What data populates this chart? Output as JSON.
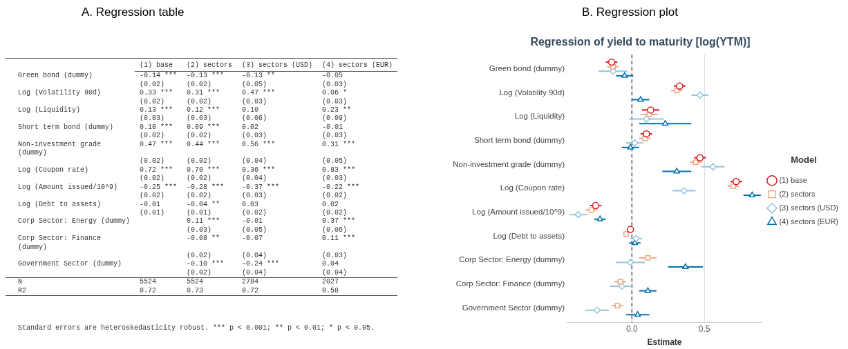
{
  "chart_data": [
    {
      "type": "other",
      "title": "A. Regression table",
      "categories": [
        "(1) base",
        "(2) sectors",
        "(3) sectors (USD)",
        "(4) sectors (EUR)"
      ],
      "y_categories": [
        "Green bond (dummy)",
        null,
        "Log (Volatility 90d)",
        null,
        "Log (Liquidity)",
        null,
        "Short term bond (dummy)",
        null,
        "Non-investment grade (dummy)",
        null,
        "Log (Coupon rate)",
        null,
        "Log (Amount issued/10^9)",
        null,
        "Log (Debt to assets)",
        null,
        "Corp Sector: Energy (dummy)",
        null,
        "Corp Sector: Finance (dummy)",
        null,
        "Government Sector (dummy)",
        null,
        "N",
        "R2"
      ],
      "cell_labels": [
        [
          "-0.14 ***",
          "-0.13 ***",
          "-0.13 **",
          "-0.05"
        ],
        [
          "(0.02)",
          "(0.02)",
          "(0.05)",
          "(0.03)"
        ],
        [
          "0.33 ***",
          "0.31 ***",
          "0.47 ***",
          "0.06 *"
        ],
        [
          "(0.02)",
          "(0.02)",
          "(0.03)",
          "(0.03)"
        ],
        [
          "0.13 ***",
          "0.12 ***",
          "0.10",
          "0.23 **"
        ],
        [
          "(0.03)",
          "(0.03)",
          "(0.06)",
          "(0.09)"
        ],
        [
          "0.10 ***",
          "0.09 ***",
          "0.02",
          "-0.01"
        ],
        [
          "(0.02)",
          "(0.02)",
          "(0.03)",
          "(0.03)"
        ],
        [
          "0.47 ***",
          "0.44 ***",
          "0.56 ***",
          "0.31 ***"
        ],
        [
          "(0.02)",
          "(0.02)",
          "(0.04)",
          "(0.05)"
        ],
        [
          "0.72 ***",
          "0.70 ***",
          "0.36 ***",
          "0.83 ***"
        ],
        [
          "(0.02)",
          "(0.02)",
          "(0.04)",
          "(0.03)"
        ],
        [
          "-0.25 ***",
          "-0.28 ***",
          "-0.37 ***",
          "-0.22 ***"
        ],
        [
          "(0.02)",
          "(0.02)",
          "(0.03)",
          "(0.02)"
        ],
        [
          "-0.01",
          "-0.04 **",
          "0.03",
          "0.02"
        ],
        [
          "(0.01)",
          "(0.01)",
          "(0.02)",
          "(0.02)"
        ],
        [
          null,
          "0.11 ***",
          "-0.01",
          "0.37 ***"
        ],
        [
          null,
          "(0.03)",
          "(0.05)",
          "(0.06)"
        ],
        [
          null,
          "-0.08 **",
          "-0.07",
          "0.11 ***"
        ],
        [
          null,
          "(0.02)",
          "(0.04)",
          "(0.03)"
        ],
        [
          null,
          "-0.10 ***",
          "-0.24 ***",
          "0.04"
        ],
        [
          null,
          "(0.02)",
          "(0.04)",
          "(0.04)"
        ],
        [
          "5524",
          "5524",
          "2784",
          "2027"
        ],
        [
          "0.72",
          "0.73",
          "0.72",
          "0.58"
        ]
      ],
      "annotations": [
        "Standard errors are heteroskedasticity robust.   *** p < 0.001; ** p < 0.01; * p < 0.05."
      ]
    },
    {
      "type": "scatter",
      "title": "Regression of yield to maturity [log(YTM)]",
      "annotations": [
        "B. Regression plot"
      ],
      "xlabel": "Estimate",
      "legend_title": "Model",
      "legend": "right",
      "grid": "x",
      "orientation": "horizontal",
      "categories": [
        "Green bond (dummy)",
        "Log (Volatility 90d)",
        "Log (Liquidity)",
        "Short term bond (dummy)",
        "Non-investment grade (dummy)",
        "Log (Coupon rate)",
        "Log (Amount issued/10^9)",
        "Log (Debt to assets)",
        "Corp Sector: Energy (dummy)",
        "Corp Sector: Finance (dummy)",
        "Government Sector (dummy)"
      ],
      "xlim": [
        -0.45,
        0.9
      ],
      "xticks": [
        {
          "value": 0,
          "label": "0.0"
        },
        {
          "value": 0.5,
          "label": "0.5"
        }
      ],
      "ref_lines": [
        {
          "axis": "x",
          "value": 0,
          "color": "#333333",
          "line_style": "dashed"
        }
      ],
      "series": [
        {
          "name": "(1) base",
          "color": "#d7191c",
          "marker": "circle",
          "values": [
            -0.14,
            0.33,
            0.13,
            0.1,
            0.47,
            0.72,
            -0.25,
            -0.01,
            null,
            null,
            null
          ],
          "errors": [
            0.04,
            0.04,
            0.06,
            0.04,
            0.04,
            0.04,
            0.04,
            0.02,
            null,
            null,
            null
          ]
        },
        {
          "name": "(2) sectors",
          "color": "#f4a582",
          "marker": "square",
          "values": [
            -0.13,
            0.31,
            0.12,
            0.09,
            0.44,
            0.7,
            -0.28,
            -0.04,
            0.11,
            -0.08,
            -0.1
          ],
          "errors": [
            0.04,
            0.04,
            0.06,
            0.04,
            0.04,
            0.04,
            0.04,
            0.02,
            0.06,
            0.04,
            0.04
          ]
        },
        {
          "name": "(3) sectors (USD)",
          "color": "#92c5de",
          "marker": "diamond",
          "values": [
            -0.13,
            0.47,
            0.1,
            0.02,
            0.56,
            0.36,
            -0.37,
            0.03,
            -0.01,
            -0.07,
            -0.24
          ],
          "errors": [
            0.1,
            0.06,
            0.12,
            0.06,
            0.08,
            0.08,
            0.06,
            0.04,
            0.1,
            0.08,
            0.08
          ]
        },
        {
          "name": "(4) sectors (EUR)",
          "color": "#0571b0",
          "marker": "triangle",
          "values": [
            -0.05,
            0.06,
            0.23,
            -0.01,
            0.31,
            0.83,
            -0.22,
            0.02,
            0.37,
            0.11,
            0.04
          ],
          "errors": [
            0.06,
            0.06,
            0.18,
            0.06,
            0.1,
            0.06,
            0.04,
            0.04,
            0.12,
            0.06,
            0.08
          ]
        }
      ]
    }
  ]
}
